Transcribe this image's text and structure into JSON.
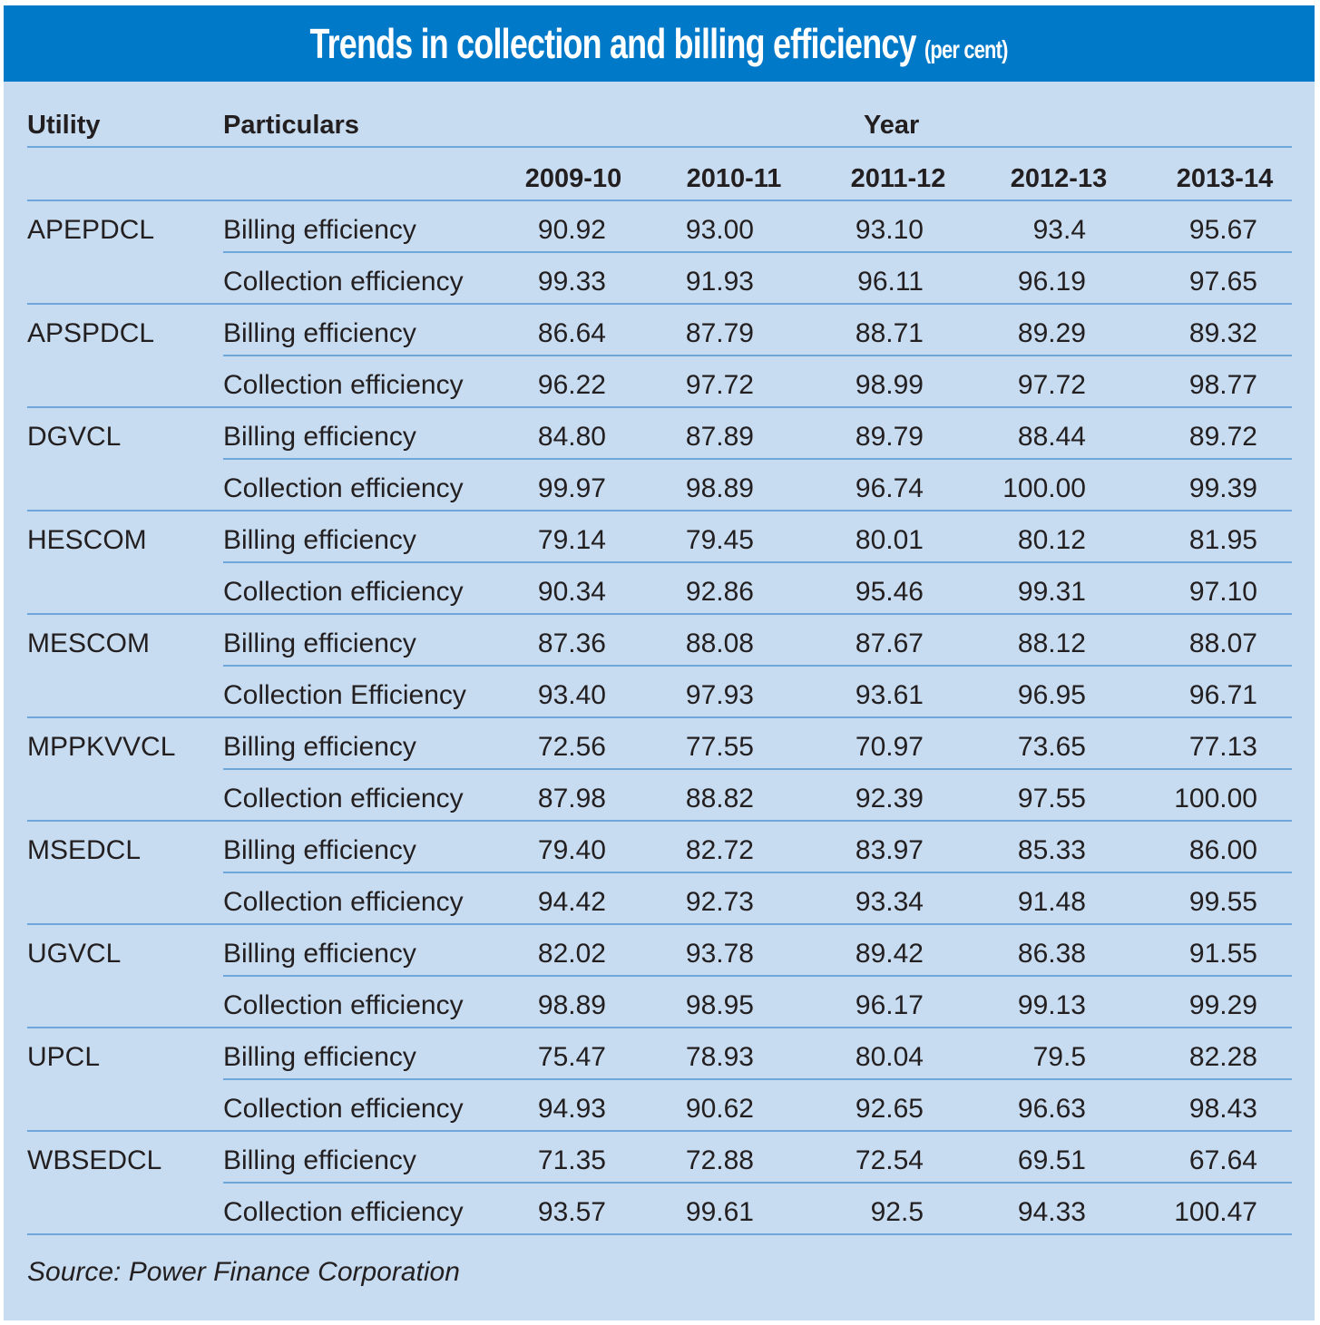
{
  "title": {
    "main": "Trends in collection and billing efficiency",
    "unit": "(per cent)"
  },
  "headers": {
    "utility": "Utility",
    "particulars": "Particulars",
    "year": "Year",
    "years": [
      "2009-10",
      "2010-11",
      "2011-12",
      "2012-13",
      "2013-14"
    ]
  },
  "rows": [
    {
      "utility": "APEPDCL",
      "particular": "Billing efficiency",
      "values": [
        "90.92",
        "93.00",
        "93.10",
        "93.4",
        "95.67"
      ]
    },
    {
      "utility": "",
      "particular": "Collection efficiency",
      "values": [
        "99.33",
        "91.93",
        "96.11",
        "96.19",
        "97.65"
      ]
    },
    {
      "utility": "APSPDCL",
      "particular": "Billing efficiency",
      "values": [
        "86.64",
        "87.79",
        "88.71",
        "89.29",
        "89.32"
      ]
    },
    {
      "utility": "",
      "particular": "Collection efficiency",
      "values": [
        "96.22",
        "97.72",
        "98.99",
        "97.72",
        "98.77"
      ]
    },
    {
      "utility": "DGVCL",
      "particular": "Billing efficiency",
      "values": [
        "84.80",
        "87.89",
        "89.79",
        "88.44",
        "89.72"
      ]
    },
    {
      "utility": "",
      "particular": "Collection efficiency",
      "values": [
        "99.97",
        "98.89",
        "96.74",
        "100.00",
        "99.39"
      ]
    },
    {
      "utility": "HESCOM",
      "particular": "Billing efficiency",
      "values": [
        "79.14",
        "79.45",
        "80.01",
        "80.12",
        "81.95"
      ]
    },
    {
      "utility": "",
      "particular": "Collection efficiency",
      "values": [
        "90.34",
        "92.86",
        "95.46",
        "99.31",
        "97.10"
      ]
    },
    {
      "utility": "MESCOM",
      "particular": "Billing efficiency",
      "values": [
        "87.36",
        "88.08",
        "87.67",
        "88.12",
        "88.07"
      ]
    },
    {
      "utility": "",
      "particular": "Collection Efficiency",
      "values": [
        "93.40",
        "97.93",
        "93.61",
        "96.95",
        "96.71"
      ]
    },
    {
      "utility": "MPPKVVCL",
      "particular": "Billing efficiency",
      "values": [
        "72.56",
        "77.55",
        "70.97",
        "73.65",
        "77.13"
      ]
    },
    {
      "utility": "",
      "particular": "Collection efficiency",
      "values": [
        "87.98",
        "88.82",
        "92.39",
        "97.55",
        "100.00"
      ]
    },
    {
      "utility": "MSEDCL",
      "particular": "Billing efficiency",
      "values": [
        "79.40",
        "82.72",
        "83.97",
        "85.33",
        "86.00"
      ]
    },
    {
      "utility": "",
      "particular": "Collection efficiency",
      "values": [
        "94.42",
        "92.73",
        "93.34",
        "91.48",
        "99.55"
      ]
    },
    {
      "utility": "UGVCL",
      "particular": "Billing efficiency",
      "values": [
        "82.02",
        "93.78",
        "89.42",
        "86.38",
        "91.55"
      ]
    },
    {
      "utility": "",
      "particular": "Collection efficiency",
      "values": [
        "98.89",
        "98.95",
        "96.17",
        "99.13",
        "99.29"
      ]
    },
    {
      "utility": "UPCL",
      "particular": "Billing efficiency",
      "values": [
        "75.47",
        "78.93",
        "80.04",
        "79.5",
        "82.28"
      ]
    },
    {
      "utility": "",
      "particular": "Collection efficiency",
      "values": [
        "94.93",
        "90.62",
        "92.65",
        "96.63",
        "98.43"
      ]
    },
    {
      "utility": "WBSEDCL",
      "particular": "Billing efficiency",
      "values": [
        "71.35",
        "72.88",
        "72.54",
        "69.51",
        "67.64"
      ]
    },
    {
      "utility": "",
      "particular": "Collection efficiency",
      "values": [
        "93.57",
        "99.61",
        "92.5",
        "94.33",
        "100.47"
      ]
    }
  ],
  "source": "Source: Power Finance Corporation",
  "colors": {
    "title_bg": "#0079c8",
    "panel_bg": "#c7dcf0",
    "rule": "#6fa6dc",
    "text": "#231f20"
  }
}
